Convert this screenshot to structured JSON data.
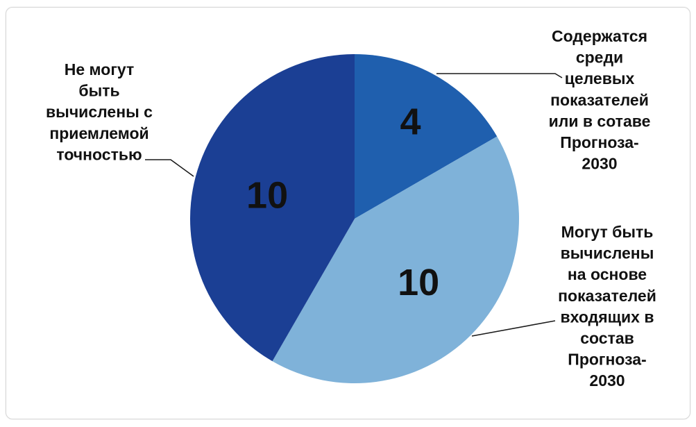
{
  "chart_data": {
    "type": "pie",
    "title": "",
    "slices": [
      {
        "value": 4,
        "value_label": "4",
        "label": [
          "Содержатся",
          "среди",
          "целевых",
          "показателей",
          "или в сотаве",
          "Прогноза-",
          "2030"
        ],
        "color": "#1f5fae"
      },
      {
        "value": 10,
        "value_label": "10",
        "label": [
          "Могут быть",
          "вычислены",
          "на основе",
          "показателей",
          "входящих в",
          "состав",
          "Прогноза-",
          "2030"
        ],
        "color": "#7fb2d9"
      },
      {
        "value": 10,
        "value_label": "10",
        "label": [
          "Не могут",
          "быть",
          "вычислены с",
          "приемлемой",
          "точностью"
        ],
        "color": "#1b3f94"
      }
    ],
    "start_angle_deg": 0,
    "direction": "clockwise",
    "legend": "none",
    "label_style": "callouts"
  }
}
